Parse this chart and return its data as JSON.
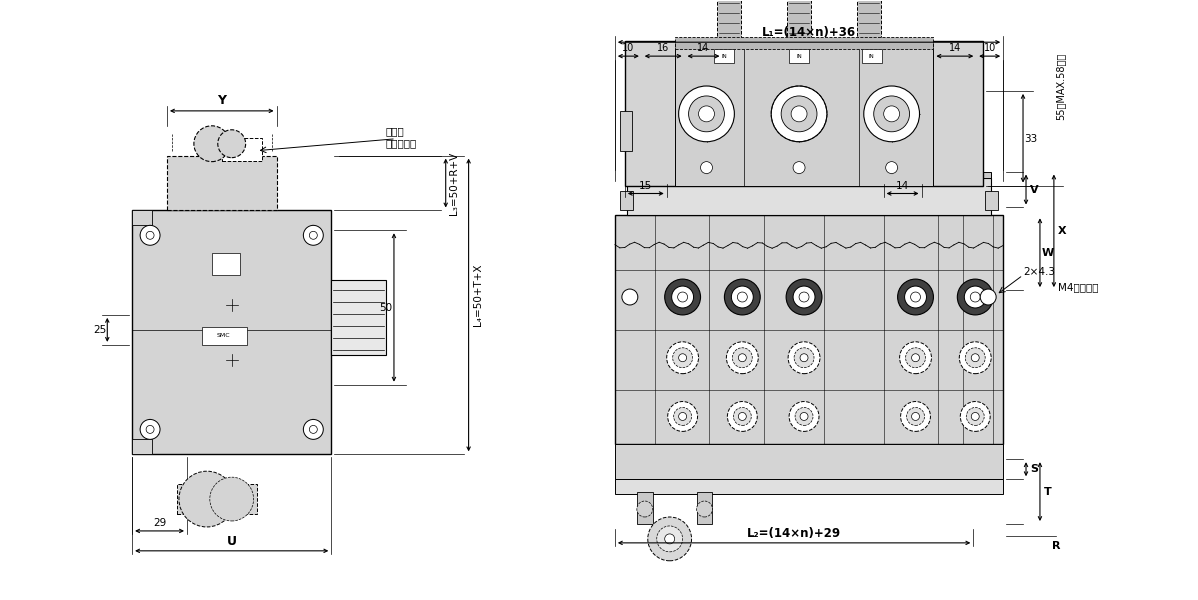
{
  "bg_color": "#ffffff",
  "line_color": "#000000",
  "light_gray": "#d4d4d4",
  "medium_gray": "#b8b8b8",
  "dark_gray": "#404040",
  "annotations_left": {
    "Y_label": "Y",
    "dim_25": "25",
    "dim_50": "50",
    "dim_29": "29",
    "U_label": "U",
    "L3_label": "L₃=50+R+V",
    "L4_label": "L₄=50+T+X",
    "pressure_label": "圧力計",
    "pressure_sub": "（付属品）"
  },
  "annotations_top": {
    "L1_label": "L₁=(14×n)+36",
    "L2_label": "L₂=(14×n)+29",
    "dim_10a": "10",
    "dim_16": "16",
    "dim_14a": "14",
    "dim_14b": "14",
    "dim_10b": "10",
    "V_label": "V",
    "W_label": "W",
    "X_label": "X",
    "S_label": "S",
    "T_label": "T",
    "R_label": "R",
    "hole_label": "2×4.3",
    "M4_label": "M4ねじ用穴"
  },
  "annotations_front": {
    "dim_15": "15",
    "dim_14": "14",
    "dim_33": "33",
    "dim_55": "55（MAX.58）注"
  }
}
